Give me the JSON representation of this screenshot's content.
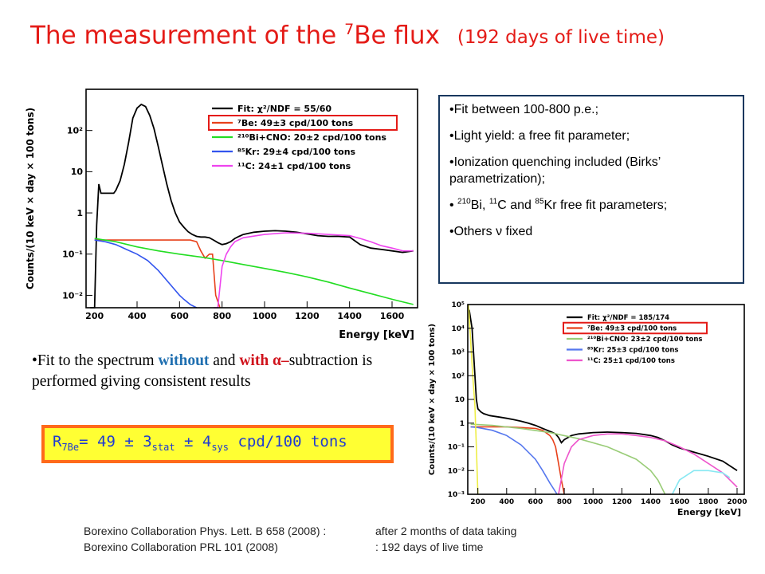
{
  "page": {
    "title": {
      "main": "The measurement of the ",
      "isotope_mass": "7",
      "isotope": "Be flux",
      "note": "(192 days of live time)"
    },
    "fit_notes": {
      "line1": "•Fit between 100-800 p.e.;",
      "line2": "•Light yield: a free fit parameter;",
      "line3": "•Ionization quenching included (Birks’ parametrization);",
      "line4": {
        "bullet": "• ",
        "m1": "210",
        "s1": "Bi, ",
        "m2": "11",
        "s2": "C  and ",
        "m3": "85",
        "s3": "Kr      free fit parameters;"
      },
      "line5": "•Others ν fixed"
    },
    "bullet": {
      "t1": "•Fit to the spectrum ",
      "without": "without",
      "t2": " and ",
      "with": "with",
      "alpha": " α–",
      "t3": "subtraction is performed giving consistent results"
    },
    "result": {
      "r": "R",
      "r_sub": "7Be",
      "v1": "= 49 ± 3",
      "stat": "stat",
      "v2": " ± 4",
      "sys": "sys",
      "v3": " cpd/100 tons"
    },
    "refs": {
      "ref1_a": "Borexino Collaboration Phys. Lett. B 658 (2008) :",
      "ref1_b": "after 2 months of data taking",
      "ref2_a": "Borexino Collaboration PRL 101  (2008)",
      "ref2_b": ": 192 days of live time"
    }
  },
  "chart_data": [
    {
      "type": "line",
      "xlabel": "Energy [keV]",
      "ylabel": "Counts/(10 keV × day × 100 tons)",
      "xlim": [
        160,
        1720
      ],
      "ylim": [
        0.005,
        1000
      ],
      "log_y": true,
      "x_ticks": [
        200,
        400,
        600,
        800,
        1000,
        1200,
        1400,
        1600
      ],
      "y_ticks": [
        {
          "v": 0.01,
          "label": "10⁻²"
        },
        {
          "v": 0.1,
          "label": "10⁻¹"
        },
        {
          "v": 1,
          "label": "1"
        },
        {
          "v": 10,
          "label": "10"
        },
        {
          "v": 100,
          "label": "10²"
        }
      ],
      "legend_position": "top-right",
      "series": [
        {
          "name": "Fit: χ²/NDF = 55/60",
          "color": "#000000",
          "x": [
            180,
            200,
            210,
            220,
            230,
            240,
            250,
            260,
            270,
            290,
            300,
            320,
            340,
            360,
            380,
            400,
            420,
            440,
            460,
            480,
            500,
            520,
            540,
            560,
            580,
            600,
            620,
            640,
            660,
            680,
            700,
            720,
            740,
            760,
            780,
            800,
            820,
            840,
            860,
            880,
            900,
            950,
            1000,
            1050,
            1100,
            1150,
            1200,
            1250,
            1300,
            1350,
            1400,
            1420,
            1450,
            1500,
            1550,
            1600,
            1650,
            1700
          ],
          "y": [
            0.005,
            0.005,
            0.5,
            5,
            3,
            3,
            3,
            3,
            3,
            3,
            3.5,
            6,
            15,
            50,
            200,
            350,
            430,
            380,
            230,
            110,
            40,
            14,
            5,
            2,
            1,
            0.6,
            0.45,
            0.35,
            0.3,
            0.27,
            0.26,
            0.26,
            0.25,
            0.22,
            0.19,
            0.17,
            0.18,
            0.2,
            0.24,
            0.27,
            0.3,
            0.34,
            0.36,
            0.37,
            0.36,
            0.34,
            0.31,
            0.28,
            0.27,
            0.27,
            0.26,
            0.22,
            0.17,
            0.14,
            0.13,
            0.12,
            0.11,
            0.12
          ]
        },
        {
          "name": "⁷Be: 49±3 cpd/100 tons",
          "color": "#e8401a",
          "x": [
            200,
            250,
            300,
            350,
            400,
            450,
            500,
            550,
            600,
            650,
            680,
            700,
            720,
            740,
            755,
            770,
            790
          ],
          "y": [
            0.22,
            0.22,
            0.22,
            0.22,
            0.22,
            0.22,
            0.22,
            0.22,
            0.22,
            0.22,
            0.2,
            0.12,
            0.08,
            0.1,
            0.1,
            0.01,
            0.005
          ]
        },
        {
          "name": "²¹⁰Bi+CNO: 20±2 cpd/100 tons",
          "color": "#22dd22",
          "x": [
            200,
            300,
            400,
            500,
            600,
            700,
            800,
            900,
            1000,
            1100,
            1200,
            1300,
            1400,
            1500,
            1600,
            1700
          ],
          "y": [
            0.24,
            0.2,
            0.15,
            0.12,
            0.1,
            0.085,
            0.07,
            0.056,
            0.045,
            0.036,
            0.028,
            0.021,
            0.015,
            0.011,
            0.008,
            0.006
          ]
        },
        {
          "name": "⁸⁵Kr: 29±4 cpd/100 tons",
          "color": "#3355ee",
          "x": [
            200,
            250,
            300,
            350,
            400,
            450,
            500,
            550,
            600,
            620,
            650,
            680
          ],
          "y": [
            0.22,
            0.2,
            0.17,
            0.13,
            0.1,
            0.07,
            0.04,
            0.02,
            0.01,
            0.008,
            0.006,
            0.005
          ]
        },
        {
          "name": "¹¹C: 24±1 cpd/100 tons",
          "color": "#ee44ee",
          "x": [
            760,
            780,
            800,
            820,
            840,
            860,
            900,
            1000,
            1100,
            1200,
            1300,
            1400,
            1450,
            1500,
            1550,
            1600,
            1650,
            1700
          ],
          "y": [
            0.005,
            0.005,
            0.05,
            0.1,
            0.15,
            0.2,
            0.25,
            0.3,
            0.33,
            0.32,
            0.3,
            0.28,
            0.24,
            0.2,
            0.16,
            0.14,
            0.12,
            0.12
          ]
        }
      ]
    },
    {
      "type": "line",
      "xlabel": "Energy [keV]",
      "ylabel": "Counts/(10 keV × day × 100 tons)",
      "xlim": [
        130,
        2050
      ],
      "ylim": [
        0.001,
        100000
      ],
      "log_y": true,
      "x_ticks": [
        200,
        400,
        600,
        800,
        1000,
        1200,
        1400,
        1600,
        1800,
        2000
      ],
      "y_ticks": [
        {
          "v": 0.001,
          "label": "10⁻³"
        },
        {
          "v": 0.01,
          "label": "10⁻²"
        },
        {
          "v": 0.1,
          "label": "10⁻¹"
        },
        {
          "v": 1,
          "label": "1"
        },
        {
          "v": 10,
          "label": "10"
        },
        {
          "v": 100,
          "label": "10²"
        },
        {
          "v": 1000,
          "label": "10³"
        },
        {
          "v": 10000,
          "label": "10⁴"
        },
        {
          "v": 100000,
          "label": "10⁵"
        }
      ],
      "legend_position": "top-right",
      "series": [
        {
          "name": "Fit: χ²/NDF = 185/174",
          "color": "#000000",
          "x": [
            140,
            160,
            180,
            190,
            200,
            220,
            240,
            260,
            280,
            300,
            350,
            400,
            450,
            500,
            550,
            600,
            650,
            700,
            720,
            740,
            760,
            780,
            800,
            850,
            900,
            1000,
            1100,
            1200,
            1300,
            1400,
            1450,
            1500,
            1550,
            1600,
            1700,
            1800,
            1900,
            2000
          ],
          "y": [
            60000,
            10000,
            100,
            10,
            4,
            3,
            2.5,
            2.3,
            2.1,
            2,
            1.8,
            1.6,
            1.4,
            1.2,
            1.0,
            0.8,
            0.6,
            0.45,
            0.4,
            0.35,
            0.25,
            0.15,
            0.2,
            0.3,
            0.35,
            0.4,
            0.42,
            0.4,
            0.37,
            0.3,
            0.25,
            0.18,
            0.12,
            0.09,
            0.06,
            0.04,
            0.025,
            0.01
          ]
        },
        {
          "name": "⁷Be: 49±3 cpd/100 tons",
          "color": "#e8401a",
          "x": [
            150,
            200,
            300,
            400,
            500,
            600,
            650,
            700,
            720,
            740,
            760,
            780,
            800
          ],
          "y": [
            0.7,
            0.7,
            0.7,
            0.7,
            0.65,
            0.6,
            0.5,
            0.3,
            0.2,
            0.1,
            0.02,
            0.004,
            0.001
          ]
        },
        {
          "name": "²¹⁰Bi+CNO: 23±2 cpd/100 tons",
          "color": "#99cc77",
          "x": [
            150,
            300,
            500,
            700,
            900,
            1100,
            1300,
            1400,
            1450,
            1500
          ],
          "y": [
            0.9,
            0.8,
            0.6,
            0.4,
            0.22,
            0.1,
            0.03,
            0.01,
            0.004,
            0.001
          ]
        },
        {
          "name": "⁸⁵Kr: 25±3 cpd/100 tons",
          "color": "#5577ee",
          "x": [
            150,
            200,
            300,
            400,
            500,
            600,
            650,
            700,
            750
          ],
          "y": [
            0.7,
            0.65,
            0.5,
            0.3,
            0.12,
            0.03,
            0.01,
            0.003,
            0.001
          ]
        },
        {
          "name": "¹¹C: 25±1 cpd/100 tons",
          "color": "#ee55cc",
          "x": [
            760,
            800,
            850,
            900,
            1000,
            1100,
            1200,
            1300,
            1400,
            1500,
            1600,
            1700,
            1800,
            1900,
            2000
          ],
          "y": [
            0.001,
            0.02,
            0.1,
            0.2,
            0.3,
            0.35,
            0.35,
            0.3,
            0.25,
            0.18,
            0.1,
            0.05,
            0.02,
            0.008,
            0.002
          ]
        },
        {
          "name": "",
          "color": "#eeee44",
          "x": [
            135,
            150,
            165,
            180,
            190,
            200
          ],
          "y": [
            100000,
            3000,
            100,
            5,
            0.1,
            0.001
          ]
        },
        {
          "name": "",
          "color": "#88e8f2",
          "x": [
            1550,
            1600,
            1700,
            1800,
            1900,
            1950
          ],
          "y": [
            0.001,
            0.004,
            0.01,
            0.01,
            0.008,
            0.005
          ]
        }
      ]
    }
  ]
}
